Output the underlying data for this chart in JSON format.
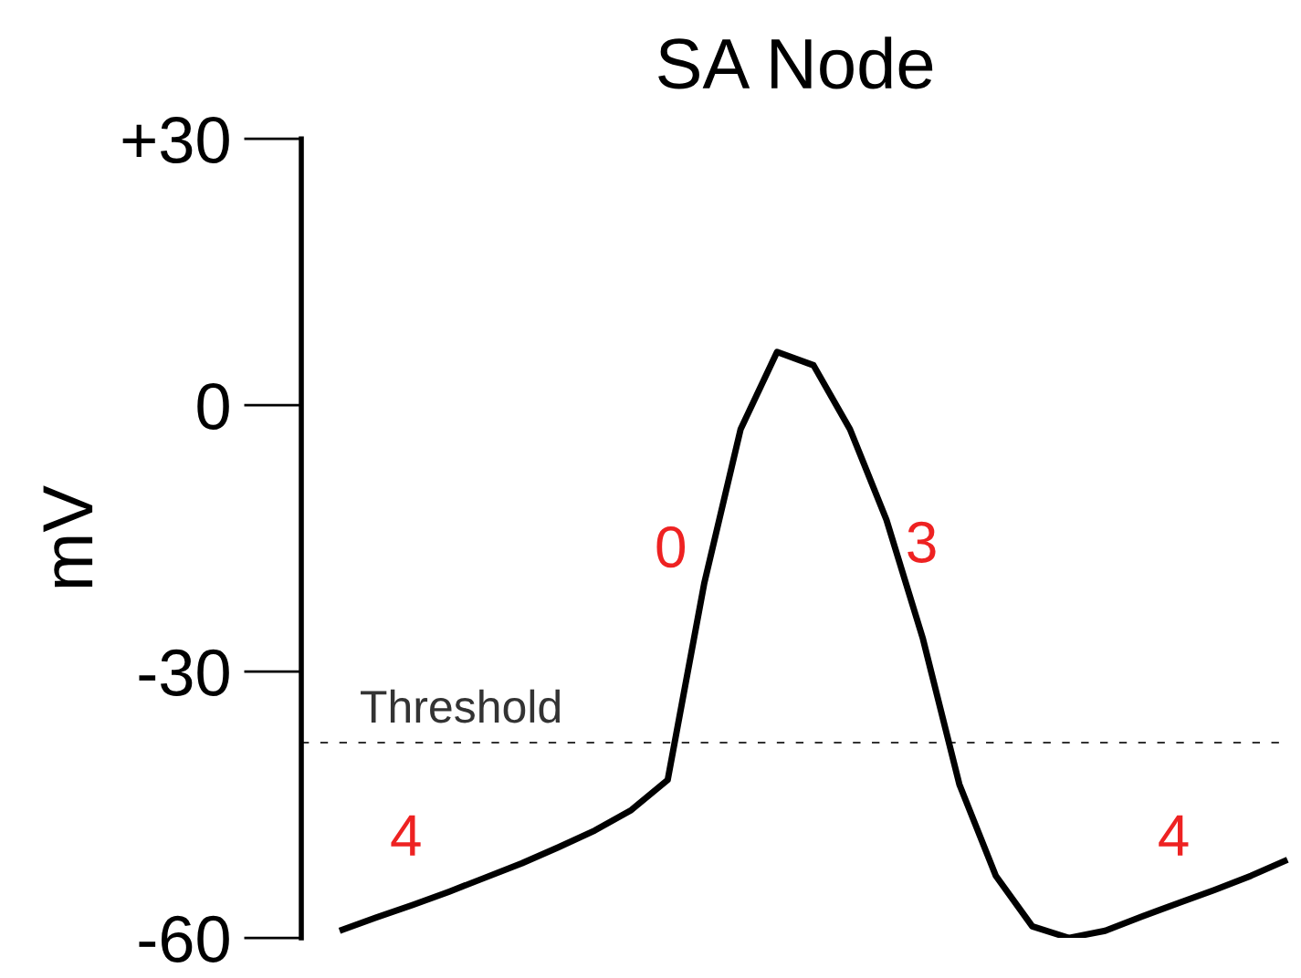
{
  "chart_data": {
    "type": "line",
    "title": "SA Node",
    "ylabel": "mV",
    "categories": [
      null,
      null,
      null,
      null,
      null,
      null,
      null,
      null,
      null,
      null,
      null,
      null,
      null,
      null,
      null,
      null,
      null,
      null,
      null,
      null,
      null,
      null,
      null,
      null,
      null,
      null,
      null
    ],
    "series": [
      {
        "color": "#000000",
        "values": [
          -59.2,
          -57.7,
          -56.3,
          -54.8,
          -53.2,
          -51.6,
          -49.8,
          -47.9,
          -45.6,
          -42.2,
          -20.1,
          -2.7,
          6.0,
          4.5,
          -2.7,
          -12.9,
          -26.3,
          -42.7,
          -53.0,
          -58.7,
          -60,
          -59.2,
          -57.6,
          -56.1,
          -54.6,
          -53.0,
          -51.2
        ]
      }
    ],
    "ylim": [
      -60,
      30
    ],
    "yticks": [
      {
        "value": 30,
        "label": "+30"
      },
      0,
      {
        "value": -30,
        "label": "-30"
      },
      {
        "value": -60,
        "label": "-60"
      }
    ],
    "tick_labels": "y",
    "grid": false,
    "marker": "none",
    "line_style": "solid",
    "ref_lines": [
      {
        "axis": "y",
        "value": -38,
        "label": "Threshold",
        "color": "#333333",
        "line_style": "dashed"
      }
    ],
    "annotations": [
      "4",
      "0",
      "3",
      "4"
    ]
  }
}
